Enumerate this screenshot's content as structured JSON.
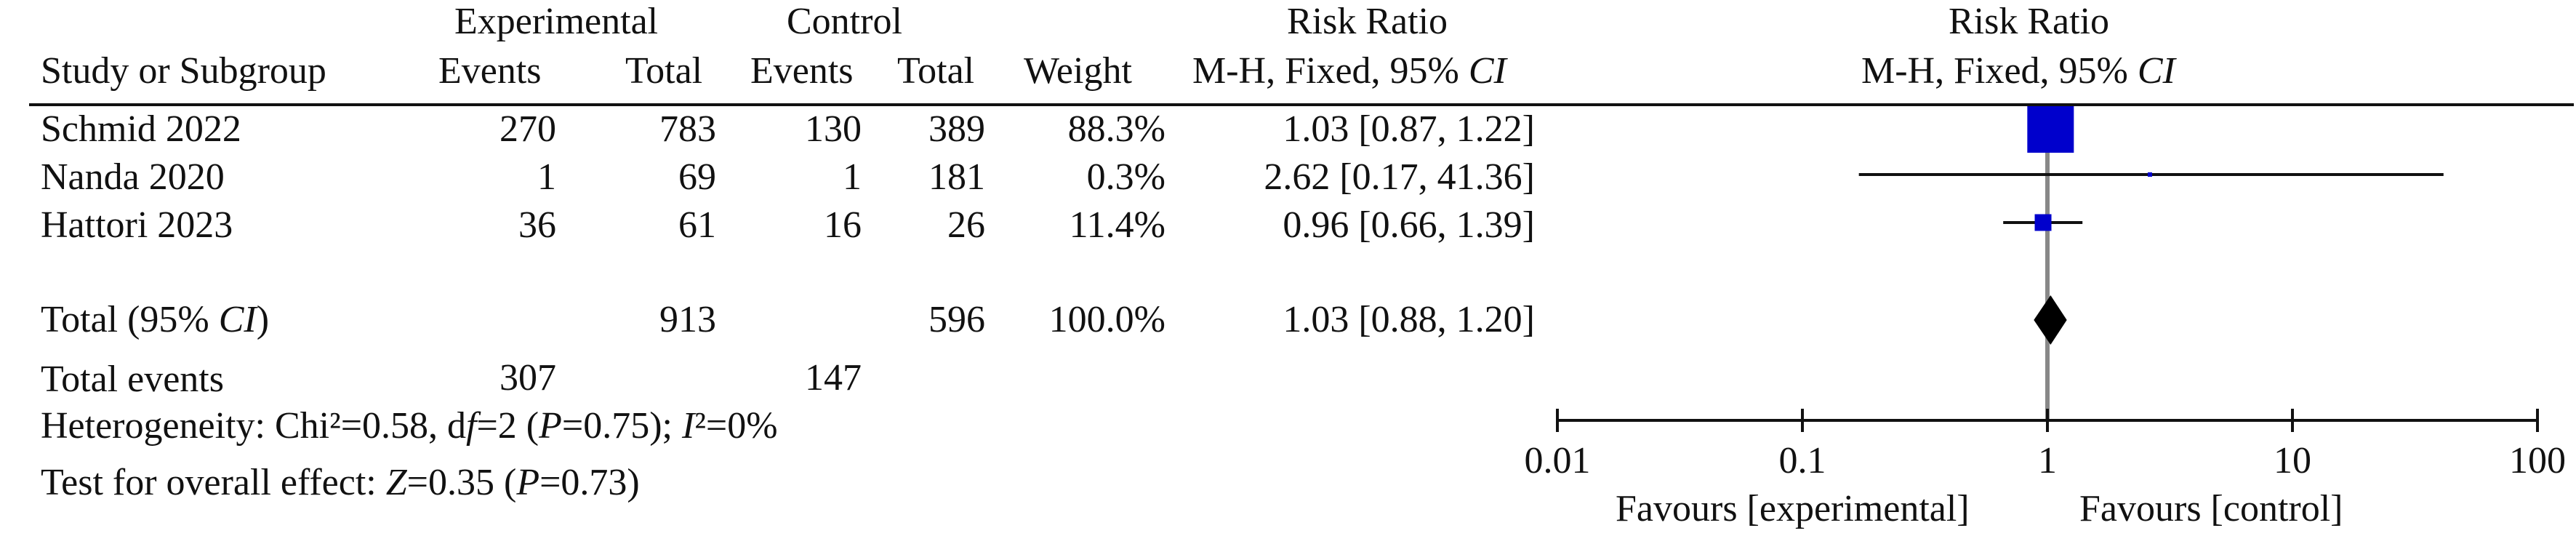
{
  "headers": {
    "experimental": "Experimental",
    "control": "Control",
    "risk_ratio": "Risk Ratio",
    "method": "M-H, Fixed, 95% ",
    "method_ci": "CI",
    "study": "Study or Subgroup",
    "events": "Events",
    "total": "Total",
    "weight": "Weight",
    "plot_risk_ratio": "Risk Ratio",
    "plot_method": "M-H, Fixed, 95% ",
    "plot_method_ci": "CI"
  },
  "studies": [
    {
      "name": "Schmid 2022",
      "exp_events": "270",
      "exp_total": "783",
      "ctl_events": "130",
      "ctl_total": "389",
      "weight": "88.3%",
      "rr_text": "1.03 [0.87, 1.22]"
    },
    {
      "name": "Nanda 2020",
      "exp_events": "1",
      "exp_total": "69",
      "ctl_events": "1",
      "ctl_total": "181",
      "weight": "0.3%",
      "rr_text": "2.62 [0.17, 41.36]"
    },
    {
      "name": "Hattori 2023",
      "exp_events": "36",
      "exp_total": "61",
      "ctl_events": "16",
      "ctl_total": "26",
      "weight": "11.4%",
      "rr_text": "0.96 [0.66, 1.39]"
    }
  ],
  "total": {
    "label": "Total (95% ",
    "label_ci": "CI",
    "label_end": ")",
    "exp_total": "913",
    "ctl_total": "596",
    "weight": "100.0%",
    "rr_text": "1.03 [0.88, 1.20]"
  },
  "total_events": {
    "label": "Total events",
    "exp": "307",
    "ctl": "147"
  },
  "heterogeneity": {
    "p1": "Heterogeneity: Chi²=0.58, d",
    "p2": "f",
    "p3": "=2 (",
    "p4": "P",
    "p5": "=0.75); ",
    "p6": "I",
    "p7": "²=0%"
  },
  "overall_effect": {
    "p1": "Test for overall effect: ",
    "p2": "Z",
    "p3": "=0.35 (",
    "p4": "P",
    "p5": "=0.73)"
  },
  "favours": {
    "left": "Favours [experimental]",
    "right": "Favours [control]"
  },
  "chart_data": {
    "type": "forest",
    "scale": "log",
    "xlim": [
      0.01,
      100
    ],
    "ticks": [
      {
        "value": 0.01,
        "label": "0.01"
      },
      {
        "value": 0.1,
        "label": "0.1"
      },
      {
        "value": 1,
        "label": "1"
      },
      {
        "value": 10,
        "label": "10"
      },
      {
        "value": 100,
        "label": "100"
      }
    ],
    "marker_color": "#0000cc",
    "studies": [
      {
        "name": "Schmid 2022",
        "rr": 1.03,
        "lower": 0.87,
        "upper": 1.22,
        "weight": 88.3
      },
      {
        "name": "Nanda 2020",
        "rr": 2.62,
        "lower": 0.17,
        "upper": 41.36,
        "weight": 0.3
      },
      {
        "name": "Hattori 2023",
        "rr": 0.96,
        "lower": 0.66,
        "upper": 1.39,
        "weight": 11.4
      }
    ],
    "pooled": {
      "rr": 1.03,
      "lower": 0.88,
      "upper": 1.2
    }
  }
}
